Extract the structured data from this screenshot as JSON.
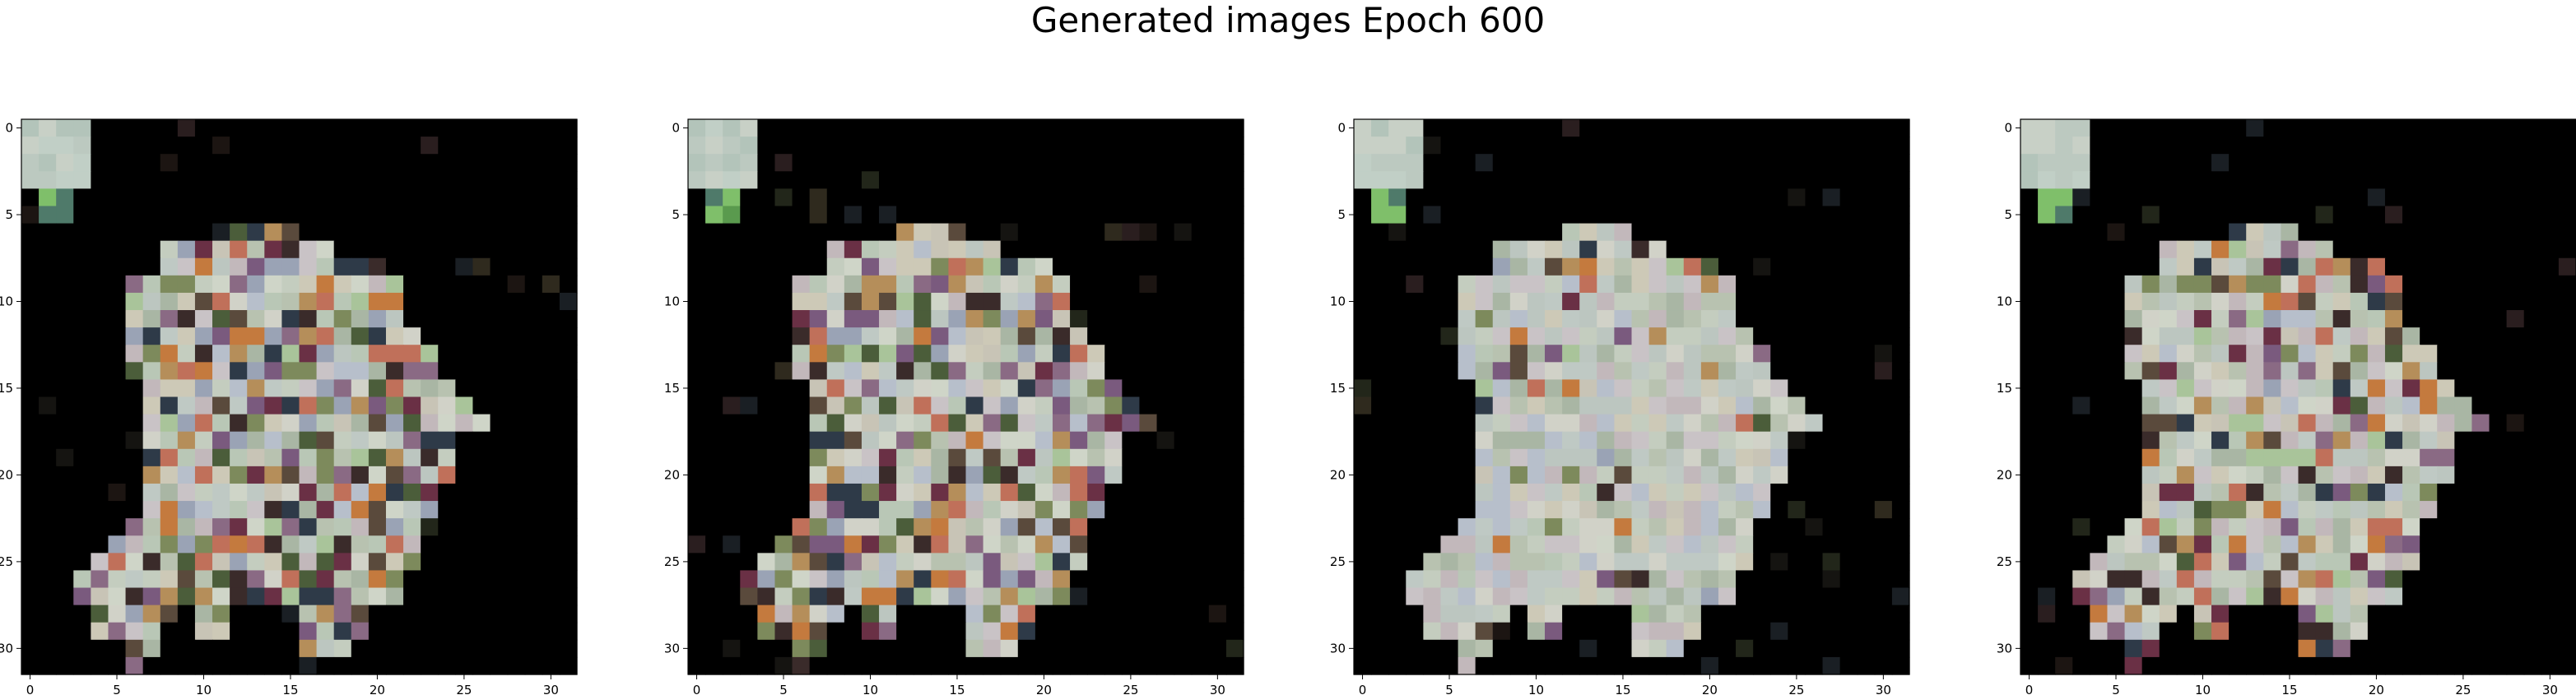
{
  "title": "Generated images Epoch 600",
  "chart_data": [
    {
      "type": "heatmap",
      "xlim": [
        -0.5,
        31.5
      ],
      "ylim": [
        31.5,
        -0.5
      ],
      "x_ticks": [
        0,
        5,
        10,
        15,
        20,
        25,
        30
      ],
      "y_ticks": [
        0,
        5,
        10,
        15,
        20,
        25,
        30
      ],
      "grid": false,
      "variant": "vivid"
    },
    {
      "type": "heatmap",
      "xlim": [
        -0.5,
        31.5
      ],
      "ylim": [
        31.5,
        -0.5
      ],
      "x_ticks": [
        0,
        5,
        10,
        15,
        20,
        25,
        30
      ],
      "y_ticks": [
        0,
        5,
        10,
        15,
        20,
        25,
        30
      ],
      "grid": false,
      "variant": "vivid"
    },
    {
      "type": "heatmap",
      "xlim": [
        -0.5,
        31.5
      ],
      "ylim": [
        31.5,
        -0.5
      ],
      "x_ticks": [
        0,
        5,
        10,
        15,
        20,
        25,
        30
      ],
      "y_ticks": [
        0,
        5,
        10,
        15,
        20,
        25,
        30
      ],
      "grid": false,
      "variant": "pale"
    },
    {
      "type": "heatmap",
      "xlim": [
        -0.5,
        31.5
      ],
      "ylim": [
        31.5,
        -0.5
      ],
      "x_ticks": [
        0,
        5,
        10,
        15,
        20,
        25,
        30
      ],
      "y_ticks": [
        0,
        5,
        10,
        15,
        20,
        25,
        30
      ],
      "grid": false,
      "variant": "mixed"
    }
  ]
}
